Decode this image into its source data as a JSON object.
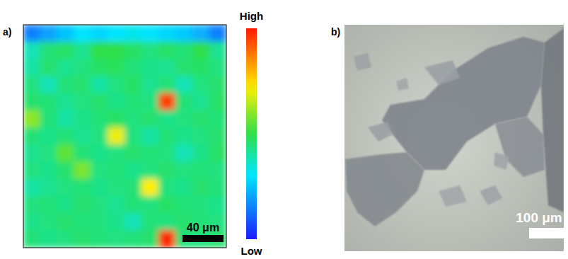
{
  "chart_data": {
    "type": "heatmap",
    "panel_label": "a)",
    "tick_labels": false,
    "cells": [
      [
        0.15,
        0.2,
        0.25,
        0.3,
        0.28,
        0.3,
        0.32,
        0.3,
        0.28,
        0.26,
        0.22,
        0.15
      ],
      [
        0.38,
        0.45,
        0.47,
        0.42,
        0.5,
        0.5,
        0.47,
        0.44,
        0.47,
        0.45,
        0.5,
        0.42
      ],
      [
        0.4,
        0.46,
        0.42,
        0.44,
        0.47,
        0.48,
        0.45,
        0.43,
        0.42,
        0.46,
        0.47,
        0.44
      ],
      [
        0.44,
        0.38,
        0.45,
        0.46,
        0.4,
        0.44,
        0.47,
        0.42,
        0.45,
        0.38,
        0.44,
        0.46
      ],
      [
        0.46,
        0.45,
        0.42,
        0.44,
        0.46,
        0.43,
        0.45,
        0.44,
        0.95,
        0.45,
        0.42,
        0.47
      ],
      [
        0.6,
        0.45,
        0.4,
        0.43,
        0.45,
        0.47,
        0.44,
        0.46,
        0.43,
        0.44,
        0.46,
        0.45
      ],
      [
        0.45,
        0.43,
        0.45,
        0.42,
        0.44,
        0.7,
        0.44,
        0.4,
        0.45,
        0.43,
        0.44,
        0.46
      ],
      [
        0.42,
        0.44,
        0.55,
        0.45,
        0.43,
        0.44,
        0.46,
        0.45,
        0.44,
        0.38,
        0.43,
        0.47
      ],
      [
        0.44,
        0.43,
        0.46,
        0.58,
        0.44,
        0.45,
        0.43,
        0.44,
        0.46,
        0.44,
        0.45,
        0.44
      ],
      [
        0.4,
        0.42,
        0.44,
        0.45,
        0.43,
        0.44,
        0.45,
        0.72,
        0.44,
        0.43,
        0.46,
        0.45
      ],
      [
        0.44,
        0.45,
        0.43,
        0.46,
        0.44,
        0.42,
        0.45,
        0.44,
        0.47,
        0.45,
        0.44,
        0.43
      ],
      [
        0.43,
        0.44,
        0.46,
        0.45,
        0.44,
        0.43,
        0.38,
        0.45,
        0.44,
        0.46,
        0.45,
        0.44
      ],
      [
        0.45,
        0.43,
        0.44,
        0.46,
        0.45,
        0.44,
        0.45,
        0.46,
        0.98,
        0.45,
        0.44,
        0.46
      ]
    ],
    "colorbar": {
      "range": [
        0,
        1
      ],
      "ticks": [
        {
          "value": 1,
          "label": "High"
        },
        {
          "value": 0,
          "label": "Low"
        }
      ]
    },
    "scale_bar": "40 μm"
  },
  "image_panel": {
    "panel_label": "b)",
    "scale_bar": "100 μm"
  }
}
